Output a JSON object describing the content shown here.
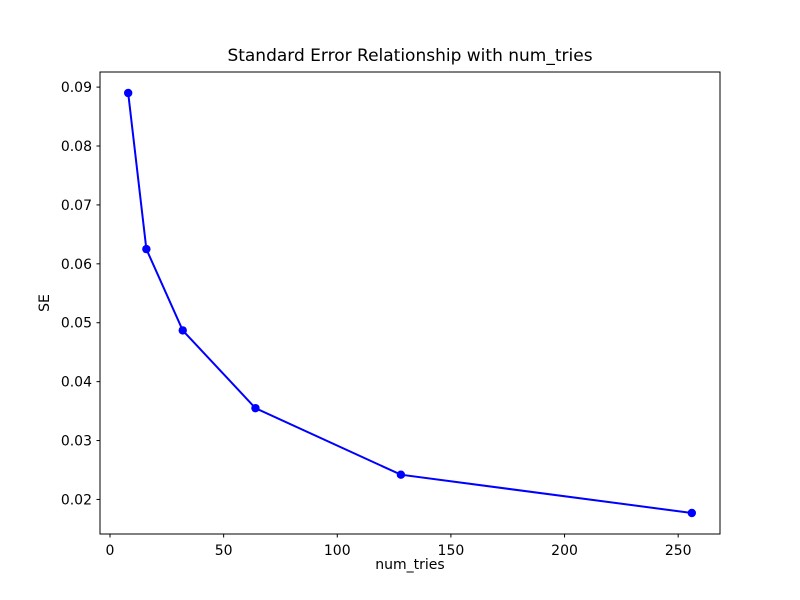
{
  "chart_data": {
    "type": "line",
    "title": "Standard Error Relationship with num_tries",
    "xlabel": "num_tries",
    "ylabel": "SE",
    "series": [
      {
        "name": "SE",
        "x": [
          8,
          16,
          32,
          64,
          128,
          256
        ],
        "y": [
          0.089,
          0.0625,
          0.0487,
          0.0355,
          0.0242,
          0.0177
        ]
      }
    ],
    "x_ticks": [
      0,
      50,
      100,
      150,
      200,
      250
    ],
    "y_ticks": [
      0.02,
      0.03,
      0.04,
      0.05,
      0.06,
      0.07,
      0.08,
      0.09
    ],
    "xlim": [
      -4.4,
      268.4
    ],
    "ylim": [
      0.014135,
      0.092565
    ],
    "grid": false,
    "legend_position": "none",
    "line_color": "#0000ff",
    "marker": "o",
    "background_color": "#ffffff",
    "text_color": "#000000"
  }
}
